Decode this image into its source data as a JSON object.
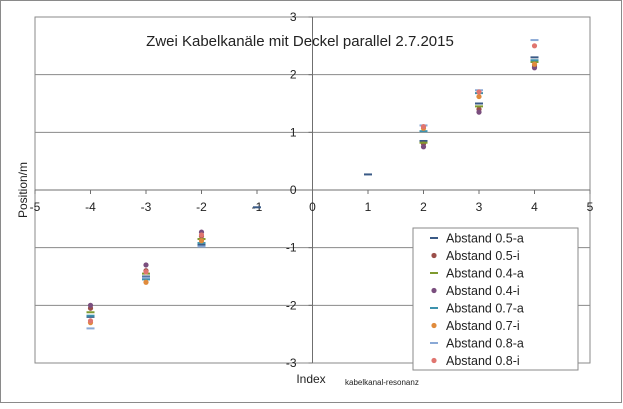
{
  "chart_data": {
    "type": "scatter",
    "title": "Zwei Kabelkanäle mit Deckel parallel 2.7.2015",
    "xlabel": "Index",
    "ylabel": "Position/m",
    "footnote": "kabelkanal-resonanz",
    "xlim": [
      -5,
      5
    ],
    "ylim": [
      -3,
      3
    ],
    "x_ticks": [
      -5,
      -4,
      -3,
      -2,
      -1,
      0,
      1,
      2,
      3,
      4,
      5
    ],
    "y_ticks": [
      -3,
      -2,
      -1,
      0,
      1,
      2,
      3
    ],
    "grid": "horizontal",
    "legend_position": "bottom-right",
    "series": [
      {
        "name": "Abstand 0.5-a",
        "marker": "dash",
        "color": "#3a5a86",
        "points": [
          [
            -4,
            -2.2
          ],
          [
            -3,
            -1.5
          ],
          [
            -2,
            -0.95
          ],
          [
            -1,
            -0.3
          ],
          [
            1,
            0.27
          ],
          [
            2,
            0.85
          ],
          [
            3,
            1.5
          ],
          [
            4,
            2.3
          ]
        ]
      },
      {
        "name": "Abstand 0.5-i",
        "marker": "dot",
        "color": "#9b4f4a",
        "points": [
          [
            -4,
            -2.05
          ],
          [
            -3,
            -1.4
          ],
          [
            -2,
            -0.8
          ],
          [
            2,
            0.8
          ],
          [
            3,
            1.4
          ],
          [
            4,
            2.15
          ]
        ]
      },
      {
        "name": "Abstand 0.4-a",
        "marker": "dash",
        "color": "#7f9a2f",
        "points": [
          [
            -4,
            -2.12
          ],
          [
            -3,
            -1.45
          ],
          [
            -2,
            -0.85
          ],
          [
            2,
            0.82
          ],
          [
            3,
            1.45
          ],
          [
            4,
            2.22
          ]
        ]
      },
      {
        "name": "Abstand 0.4-i",
        "marker": "dot",
        "color": "#7a4e7e",
        "points": [
          [
            -4,
            -2.0
          ],
          [
            -3,
            -1.3
          ],
          [
            -2,
            -0.73
          ],
          [
            2,
            0.75
          ],
          [
            3,
            1.35
          ],
          [
            4,
            2.12
          ]
        ]
      },
      {
        "name": "Abstand 0.7-a",
        "marker": "dash",
        "color": "#3d92ad",
        "points": [
          [
            -4,
            -2.18
          ],
          [
            -3,
            -1.55
          ],
          [
            -2,
            -0.92
          ],
          [
            2,
            1.02
          ],
          [
            3,
            1.68
          ],
          [
            4,
            2.25
          ]
        ]
      },
      {
        "name": "Abstand 0.7-i",
        "marker": "dot",
        "color": "#e08b3c",
        "points": [
          [
            -4,
            -2.3
          ],
          [
            -3,
            -1.6
          ],
          [
            -2,
            -0.88
          ],
          [
            2,
            1.07
          ],
          [
            3,
            1.62
          ],
          [
            4,
            2.18
          ]
        ]
      },
      {
        "name": "Abstand 0.8-a",
        "marker": "dash",
        "color": "#8aa9d6",
        "points": [
          [
            -4,
            -2.4
          ],
          [
            -3,
            -1.52
          ],
          [
            -2,
            -0.98
          ],
          [
            2,
            1.12
          ],
          [
            3,
            1.73
          ],
          [
            4,
            2.6
          ]
        ]
      },
      {
        "name": "Abstand 0.8-i",
        "marker": "dot",
        "color": "#e0756f",
        "points": [
          [
            -4,
            -2.27
          ],
          [
            -3,
            -1.42
          ],
          [
            -2,
            -0.78
          ],
          [
            2,
            1.1
          ],
          [
            3,
            1.7
          ],
          [
            4,
            2.5
          ]
        ]
      }
    ]
  }
}
